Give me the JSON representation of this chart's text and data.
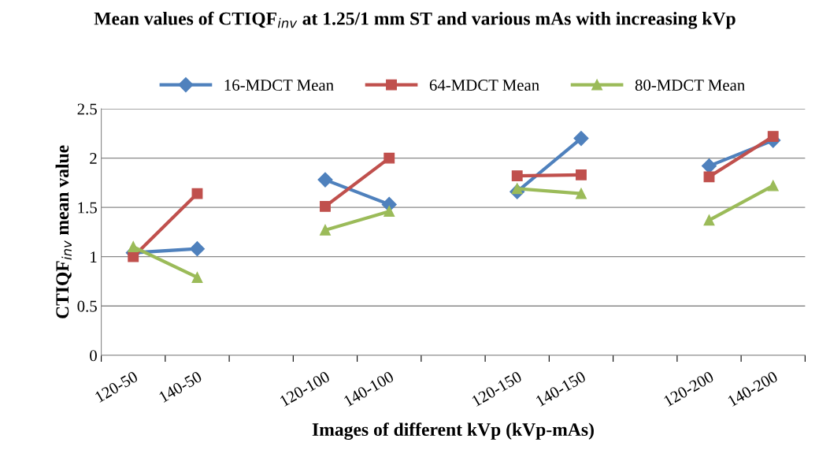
{
  "chart_data": {
    "type": "line",
    "title": "Mean values of CTIQF$_{inv}$ at 1.25/1 mm ST and various mAs with increasing kVp",
    "xlabel": "Images of different kVp (kVp-mAs)",
    "ylabel": "CTIQF$_{inv}$ mean value",
    "categories": [
      "120-50",
      "140-50",
      null,
      "120-100",
      "140-100",
      null,
      "120-150",
      "140-150",
      null,
      "120-200",
      "140-200"
    ],
    "series": [
      {
        "name": "16-MDCT Mean",
        "color": "#4f81bd",
        "marker": "diamond",
        "values": [
          1.04,
          1.08,
          null,
          1.78,
          1.53,
          null,
          1.66,
          2.2,
          null,
          1.92,
          2.18
        ]
      },
      {
        "name": "64-MDCT Mean",
        "color": "#c0504d",
        "marker": "square",
        "values": [
          1.0,
          1.64,
          null,
          1.51,
          2.0,
          null,
          1.82,
          1.83,
          null,
          1.81,
          2.22
        ]
      },
      {
        "name": "80-MDCT Mean",
        "color": "#9bbb59",
        "marker": "triangle",
        "values": [
          1.1,
          0.79,
          null,
          1.27,
          1.46,
          null,
          1.69,
          1.64,
          null,
          1.37,
          1.72
        ]
      }
    ],
    "ylim": [
      0,
      2.5
    ],
    "yticks": [
      0,
      0.5,
      1,
      1.5,
      2,
      2.5
    ],
    "grid": "y",
    "legend": "top",
    "line_style": "solid"
  }
}
